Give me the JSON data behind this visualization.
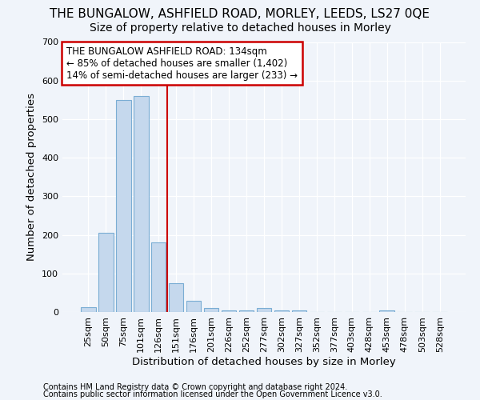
{
  "title": "THE BUNGALOW, ASHFIELD ROAD, MORLEY, LEEDS, LS27 0QE",
  "subtitle": "Size of property relative to detached houses in Morley",
  "xlabel": "Distribution of detached houses by size in Morley",
  "ylabel": "Number of detached properties",
  "footer_line1": "Contains HM Land Registry data © Crown copyright and database right 2024.",
  "footer_line2": "Contains public sector information licensed under the Open Government Licence v3.0.",
  "categories": [
    "25sqm",
    "50sqm",
    "75sqm",
    "101sqm",
    "126sqm",
    "151sqm",
    "176sqm",
    "201sqm",
    "226sqm",
    "252sqm",
    "277sqm",
    "302sqm",
    "327sqm",
    "352sqm",
    "377sqm",
    "403sqm",
    "428sqm",
    "453sqm",
    "478sqm",
    "503sqm",
    "528sqm"
  ],
  "values": [
    13,
    205,
    550,
    560,
    180,
    75,
    30,
    10,
    5,
    5,
    10,
    5,
    5,
    0,
    0,
    0,
    0,
    5,
    0,
    0,
    0
  ],
  "bar_color": "#c5d8ed",
  "bar_edge_color": "#7aadd4",
  "vline_color": "#cc0000",
  "vline_pos": 4.5,
  "ylim": [
    0,
    700
  ],
  "yticks": [
    0,
    100,
    200,
    300,
    400,
    500,
    600,
    700
  ],
  "annotation_text": "THE BUNGALOW ASHFIELD ROAD: 134sqm\n← 85% of detached houses are smaller (1,402)\n14% of semi-detached houses are larger (233) →",
  "box_facecolor": "white",
  "box_edgecolor": "#cc0000",
  "bg_color": "#f0f4fa",
  "grid_color": "white",
  "title_fontsize": 11,
  "subtitle_fontsize": 10,
  "annot_fontsize": 8.5,
  "tick_fontsize": 8,
  "label_fontsize": 9.5,
  "footer_fontsize": 7
}
